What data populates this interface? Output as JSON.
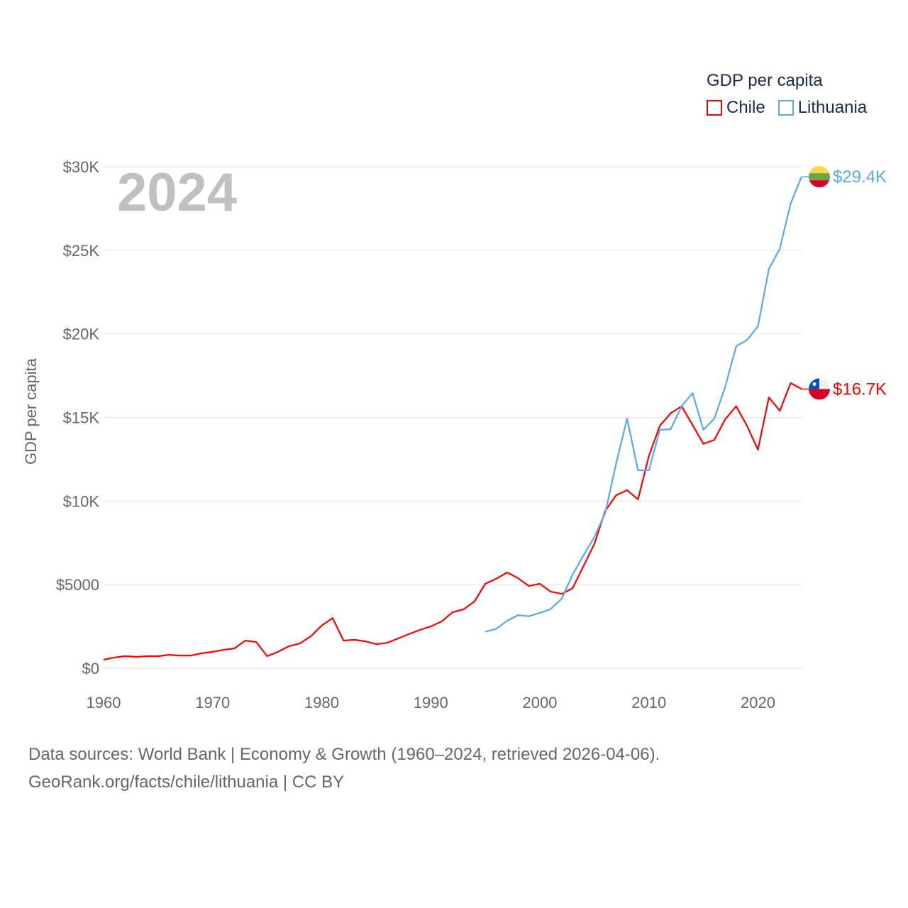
{
  "chart_data": {
    "type": "line",
    "ylabel": "GDP per capita",
    "legend_title": "GDP per capita",
    "legend_placement": "top-right",
    "current_year": "2024",
    "x_ticks": [
      1960,
      1970,
      1980,
      1990,
      2000,
      2010,
      2020
    ],
    "x_tick_labels": [
      "1960",
      "1970",
      "1980",
      "1990",
      "2000",
      "2010",
      "2020"
    ],
    "y_ticks": [
      0,
      5000,
      10000,
      15000,
      20000,
      25000,
      30000
    ],
    "y_tick_labels": [
      "$0",
      "$5000",
      "$10K",
      "$15K",
      "$20K",
      "$25K",
      "$30K"
    ],
    "xlim": [
      1960,
      2024
    ],
    "ylim": [
      0,
      30000
    ],
    "grid": true,
    "series": [
      {
        "name": "Chile",
        "color": "#ff0000",
        "end_label": "$16.7K",
        "start": 1960,
        "values": [
          510,
          640,
          720,
          680,
          720,
          720,
          800,
          760,
          760,
          890,
          980,
          1100,
          1190,
          1650,
          1570,
          720,
          980,
          1320,
          1480,
          1910,
          2550,
          3000,
          1650,
          1700,
          1610,
          1440,
          1520,
          1780,
          2040,
          2290,
          2500,
          2800,
          3350,
          3520,
          3990,
          5050,
          5350,
          5730,
          5390,
          4920,
          5050,
          4580,
          4450,
          4780,
          6100,
          7440,
          9420,
          10350,
          10650,
          10100,
          12700,
          14500,
          15250,
          15670,
          14550,
          13420,
          13660,
          14900,
          15670,
          14500,
          13070,
          16200,
          15400,
          17060,
          16700
        ]
      },
      {
        "name": "Lithuania",
        "color": "#5ba8ee",
        "end_label": "$29.4K",
        "start": 1995,
        "values": [
          2180,
          2350,
          2840,
          3180,
          3110,
          3310,
          3540,
          4160,
          5600,
          6740,
          7850,
          9300,
          12260,
          14930,
          11840,
          11840,
          14260,
          14300,
          15670,
          16460,
          14260,
          14930,
          16840,
          19260,
          19640,
          20450,
          23890,
          25090,
          27800,
          29400
        ]
      }
    ]
  },
  "footer": {
    "line1": "Data sources: World Bank | Economy & Growth (1960–2024, retrieved 2026-04-06).",
    "line2": "GeoRank.org/facts/chile/lithuania | CC BY"
  }
}
